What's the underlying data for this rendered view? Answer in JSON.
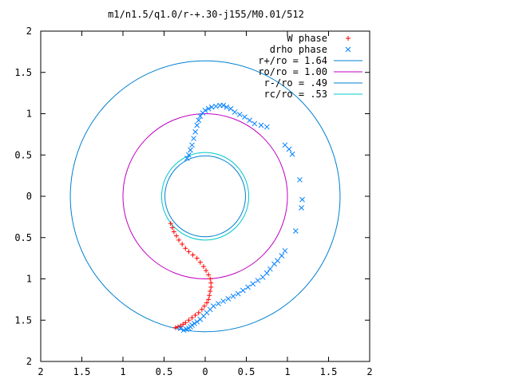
{
  "chart_data": {
    "type": "scatter",
    "title": "m1/n1.5/q1.0/r-+.30-j155/M0.01/512",
    "xlabel": "",
    "ylabel": "",
    "xlim": [
      -2,
      2
    ],
    "ylim": [
      -2,
      2
    ],
    "x_ticks": [
      -2,
      -1.5,
      -1,
      -0.5,
      0,
      0.5,
      1,
      1.5,
      2
    ],
    "y_ticks": [
      -2,
      -1.5,
      -1,
      -0.5,
      0,
      0.5,
      1,
      1.5,
      2
    ],
    "x_tick_labels": [
      "2",
      "1.5",
      "1",
      "0.5",
      "0",
      "0.5",
      "1",
      "1.5",
      "2"
    ],
    "y_tick_labels": [
      "2",
      "1.5",
      "1",
      "0.5",
      "0",
      "0.5",
      "1",
      "1.5",
      "2"
    ],
    "grid": false,
    "legend_position": "top-right",
    "series": [
      {
        "name": "W phase",
        "kind": "points",
        "marker": "plus",
        "color": "#ff0000",
        "x": [
          -0.42,
          -0.4,
          -0.38,
          -0.35,
          -0.32,
          -0.28,
          -0.24,
          -0.2,
          -0.15,
          -0.1,
          -0.06,
          -0.02,
          0.01,
          0.04,
          0.06,
          0.07,
          0.07,
          0.06,
          0.05,
          0.04,
          0.02,
          -0.01,
          -0.04,
          -0.08,
          -0.12,
          -0.16,
          -0.2,
          -0.24,
          -0.27,
          -0.3,
          -0.33,
          -0.36
        ],
        "y": [
          -0.33,
          -0.38,
          -0.43,
          -0.48,
          -0.53,
          -0.58,
          -0.63,
          -0.67,
          -0.71,
          -0.75,
          -0.8,
          -0.85,
          -0.9,
          -0.95,
          -1.0,
          -1.05,
          -1.1,
          -1.15,
          -1.2,
          -1.25,
          -1.29,
          -1.33,
          -1.37,
          -1.41,
          -1.44,
          -1.47,
          -1.5,
          -1.53,
          -1.55,
          -1.57,
          -1.58,
          -1.59
        ]
      },
      {
        "name": "drho phase",
        "kind": "points",
        "marker": "cross",
        "color": "#0080ff",
        "x": [
          -0.22,
          -0.2,
          -0.18,
          -0.16,
          -0.14,
          -0.12,
          -0.1,
          -0.08,
          -0.06,
          -0.03,
          0.0,
          0.04,
          0.08,
          0.13,
          0.18,
          0.22,
          0.26,
          0.31,
          0.36,
          0.42,
          0.48,
          0.54,
          0.6,
          0.68,
          0.75,
          0.97,
          1.02,
          1.06,
          1.15,
          1.18,
          1.17,
          1.1,
          0.97,
          0.93,
          0.88,
          0.84,
          0.79,
          0.75,
          0.7,
          0.64,
          0.58,
          0.52,
          0.46,
          0.4,
          0.34,
          0.28,
          0.22,
          0.16,
          0.1,
          0.06,
          0.02,
          -0.02,
          -0.06,
          -0.1,
          -0.13,
          -0.16,
          -0.18,
          -0.2,
          -0.23,
          -0.26,
          -0.3
        ],
        "y": [
          0.46,
          0.5,
          0.56,
          0.62,
          0.7,
          0.78,
          0.86,
          0.92,
          0.97,
          1.01,
          1.04,
          1.06,
          1.08,
          1.09,
          1.1,
          1.1,
          1.08,
          1.06,
          1.02,
          0.99,
          0.96,
          0.92,
          0.88,
          0.86,
          0.84,
          0.62,
          0.57,
          0.51,
          0.2,
          -0.04,
          -0.14,
          -0.42,
          -0.66,
          -0.72,
          -0.78,
          -0.82,
          -0.88,
          -0.93,
          -0.98,
          -1.02,
          -1.06,
          -1.1,
          -1.14,
          -1.18,
          -1.21,
          -1.24,
          -1.27,
          -1.3,
          -1.33,
          -1.37,
          -1.41,
          -1.45,
          -1.49,
          -1.52,
          -1.54,
          -1.56,
          -1.58,
          -1.6,
          -1.61,
          -1.62,
          -1.6
        ]
      },
      {
        "name": "r+/ro = 1.64",
        "kind": "circle",
        "r": 1.64,
        "color": "#0080d0"
      },
      {
        "name": "ro/ro = 1.00",
        "kind": "circle",
        "r": 1.0,
        "color": "#c000c0"
      },
      {
        "name": "r-/ro = .49",
        "kind": "circle",
        "r": 0.49,
        "color": "#0080d0"
      },
      {
        "name": "rc/ro = .53",
        "kind": "circle",
        "r": 0.53,
        "color": "#00c8c8"
      }
    ]
  }
}
